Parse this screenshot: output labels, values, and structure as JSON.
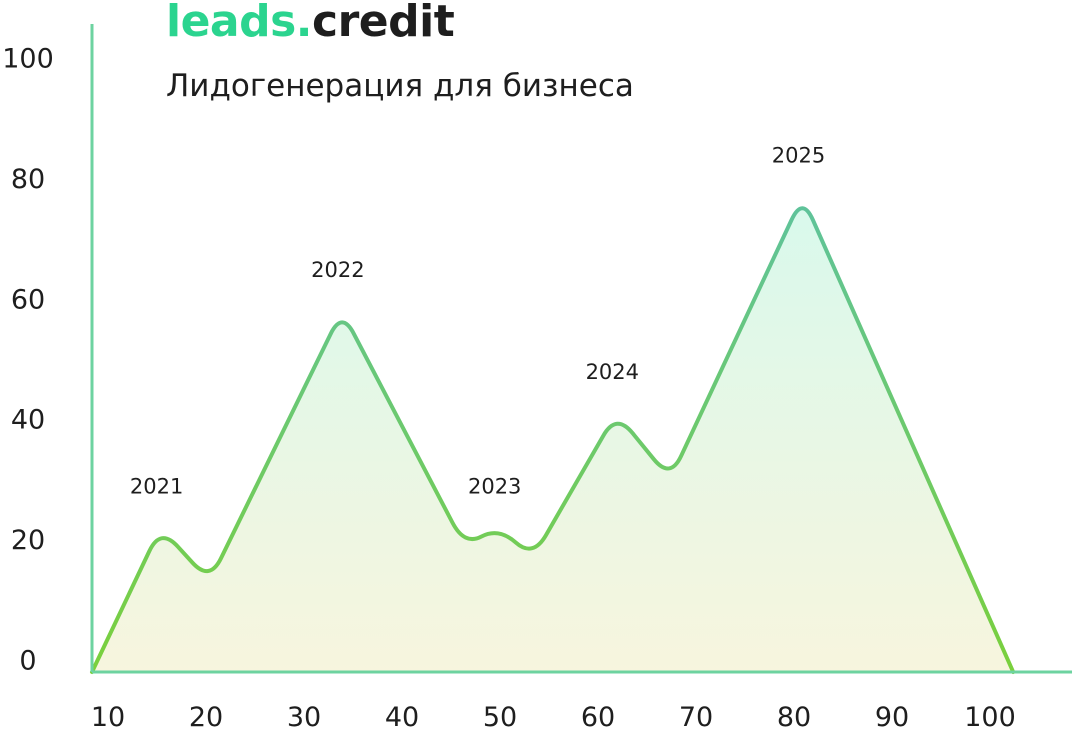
{
  "header": {
    "brand_accent": "leads.",
    "brand_rest": "credit",
    "subtitle": "Лидогенерация для бизнеса"
  },
  "colors": {
    "accent": "#2bd48f",
    "axis": "#6dd3a0",
    "line_top": "#5fc39a",
    "line_bottom": "#7ad03c",
    "fill_top": "#d9f9ec",
    "fill_bottom": "#f7f5de",
    "text": "#1e1e1e"
  },
  "chart_data": {
    "type": "area",
    "title": "",
    "xlabel": "",
    "ylabel": "",
    "xlim": [
      10,
      110
    ],
    "ylim": [
      0,
      108
    ],
    "x_ticks": [
      10,
      20,
      30,
      40,
      50,
      60,
      70,
      80,
      90,
      100
    ],
    "y_ticks": [
      0,
      20,
      40,
      60,
      80,
      100
    ],
    "grid": false,
    "legend": "none",
    "points": [
      {
        "x": 10,
        "y": 0
      },
      {
        "x": 17,
        "y": 24
      },
      {
        "x": 22,
        "y": 15
      },
      {
        "x": 35.5,
        "y": 60
      },
      {
        "x": 48,
        "y": 21
      },
      {
        "x": 51.5,
        "y": 24
      },
      {
        "x": 55,
        "y": 19
      },
      {
        "x": 63.5,
        "y": 43
      },
      {
        "x": 69,
        "y": 32
      },
      {
        "x": 82.5,
        "y": 79
      },
      {
        "x": 104,
        "y": 0
      }
    ],
    "annotations": [
      {
        "text": "2021",
        "x": 17,
        "y": 24
      },
      {
        "text": "2022",
        "x": 35.5,
        "y": 60
      },
      {
        "text": "2023",
        "x": 51.5,
        "y": 24
      },
      {
        "text": "2024",
        "x": 63.5,
        "y": 43
      },
      {
        "text": "2025",
        "x": 82.5,
        "y": 79
      }
    ]
  }
}
